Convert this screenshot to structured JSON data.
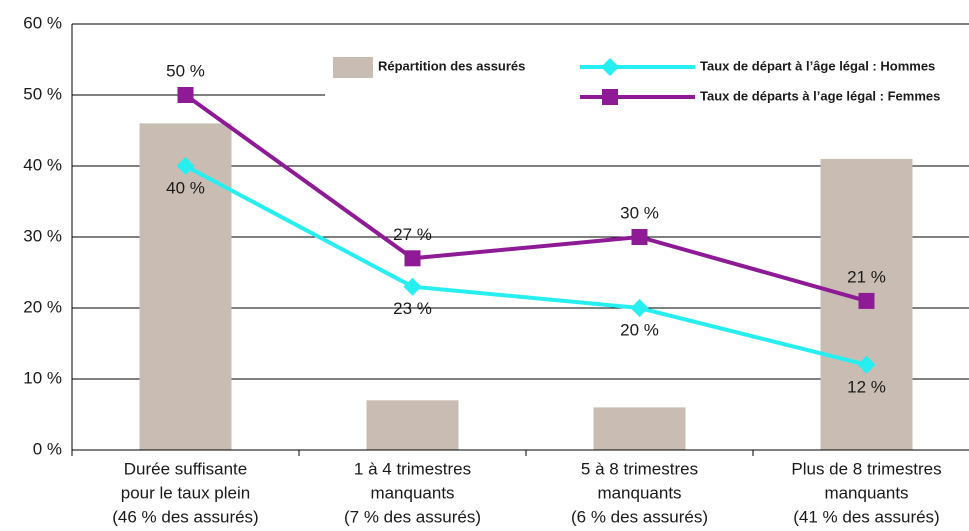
{
  "chart_data": {
    "type": "combo",
    "categories": [
      [
        "Durée suffisante",
        "pour le taux plein",
        "(46 % des assurés)"
      ],
      [
        "1 à 4 trimestres",
        "manquants",
        "(7 % des assurés)"
      ],
      [
        "5 à 8 trimestres",
        "manquants",
        "(6 % des assurés)"
      ],
      [
        "Plus de 8 trimestres",
        "manquants",
        "(41 % des assurés)"
      ]
    ],
    "series": [
      {
        "name": "Répartition des assurés",
        "type": "bar",
        "color": "#c9bdb3",
        "values": [
          46,
          7,
          6,
          41
        ]
      },
      {
        "name": "Taux de départ à l’âge légal : Hommes",
        "type": "line",
        "marker": "diamond",
        "color": "#27eef0",
        "values": [
          40,
          23,
          20,
          12
        ],
        "value_labels": [
          "40 %",
          "23 %",
          "20 %",
          "12 %"
        ],
        "label_position": "below"
      },
      {
        "name": "Taux de départs à l’age légal : Femmes",
        "type": "line",
        "marker": "square",
        "color": "#8e1a96",
        "values": [
          50,
          27,
          30,
          21
        ],
        "value_labels": [
          "50 %",
          "27 %",
          "30 %",
          "21 %"
        ],
        "label_position": "above"
      }
    ],
    "ylim": [
      0,
      60
    ],
    "yticks": [
      {
        "value": 0,
        "label": "0 %"
      },
      {
        "value": 10,
        "label": "10 %"
      },
      {
        "value": 20,
        "label": "20 %"
      },
      {
        "value": 30,
        "label": "30 %"
      },
      {
        "value": 40,
        "label": "40 %"
      },
      {
        "value": 50,
        "label": "50 %"
      },
      {
        "value": 60,
        "label": "60 %"
      }
    ],
    "grid": true
  }
}
